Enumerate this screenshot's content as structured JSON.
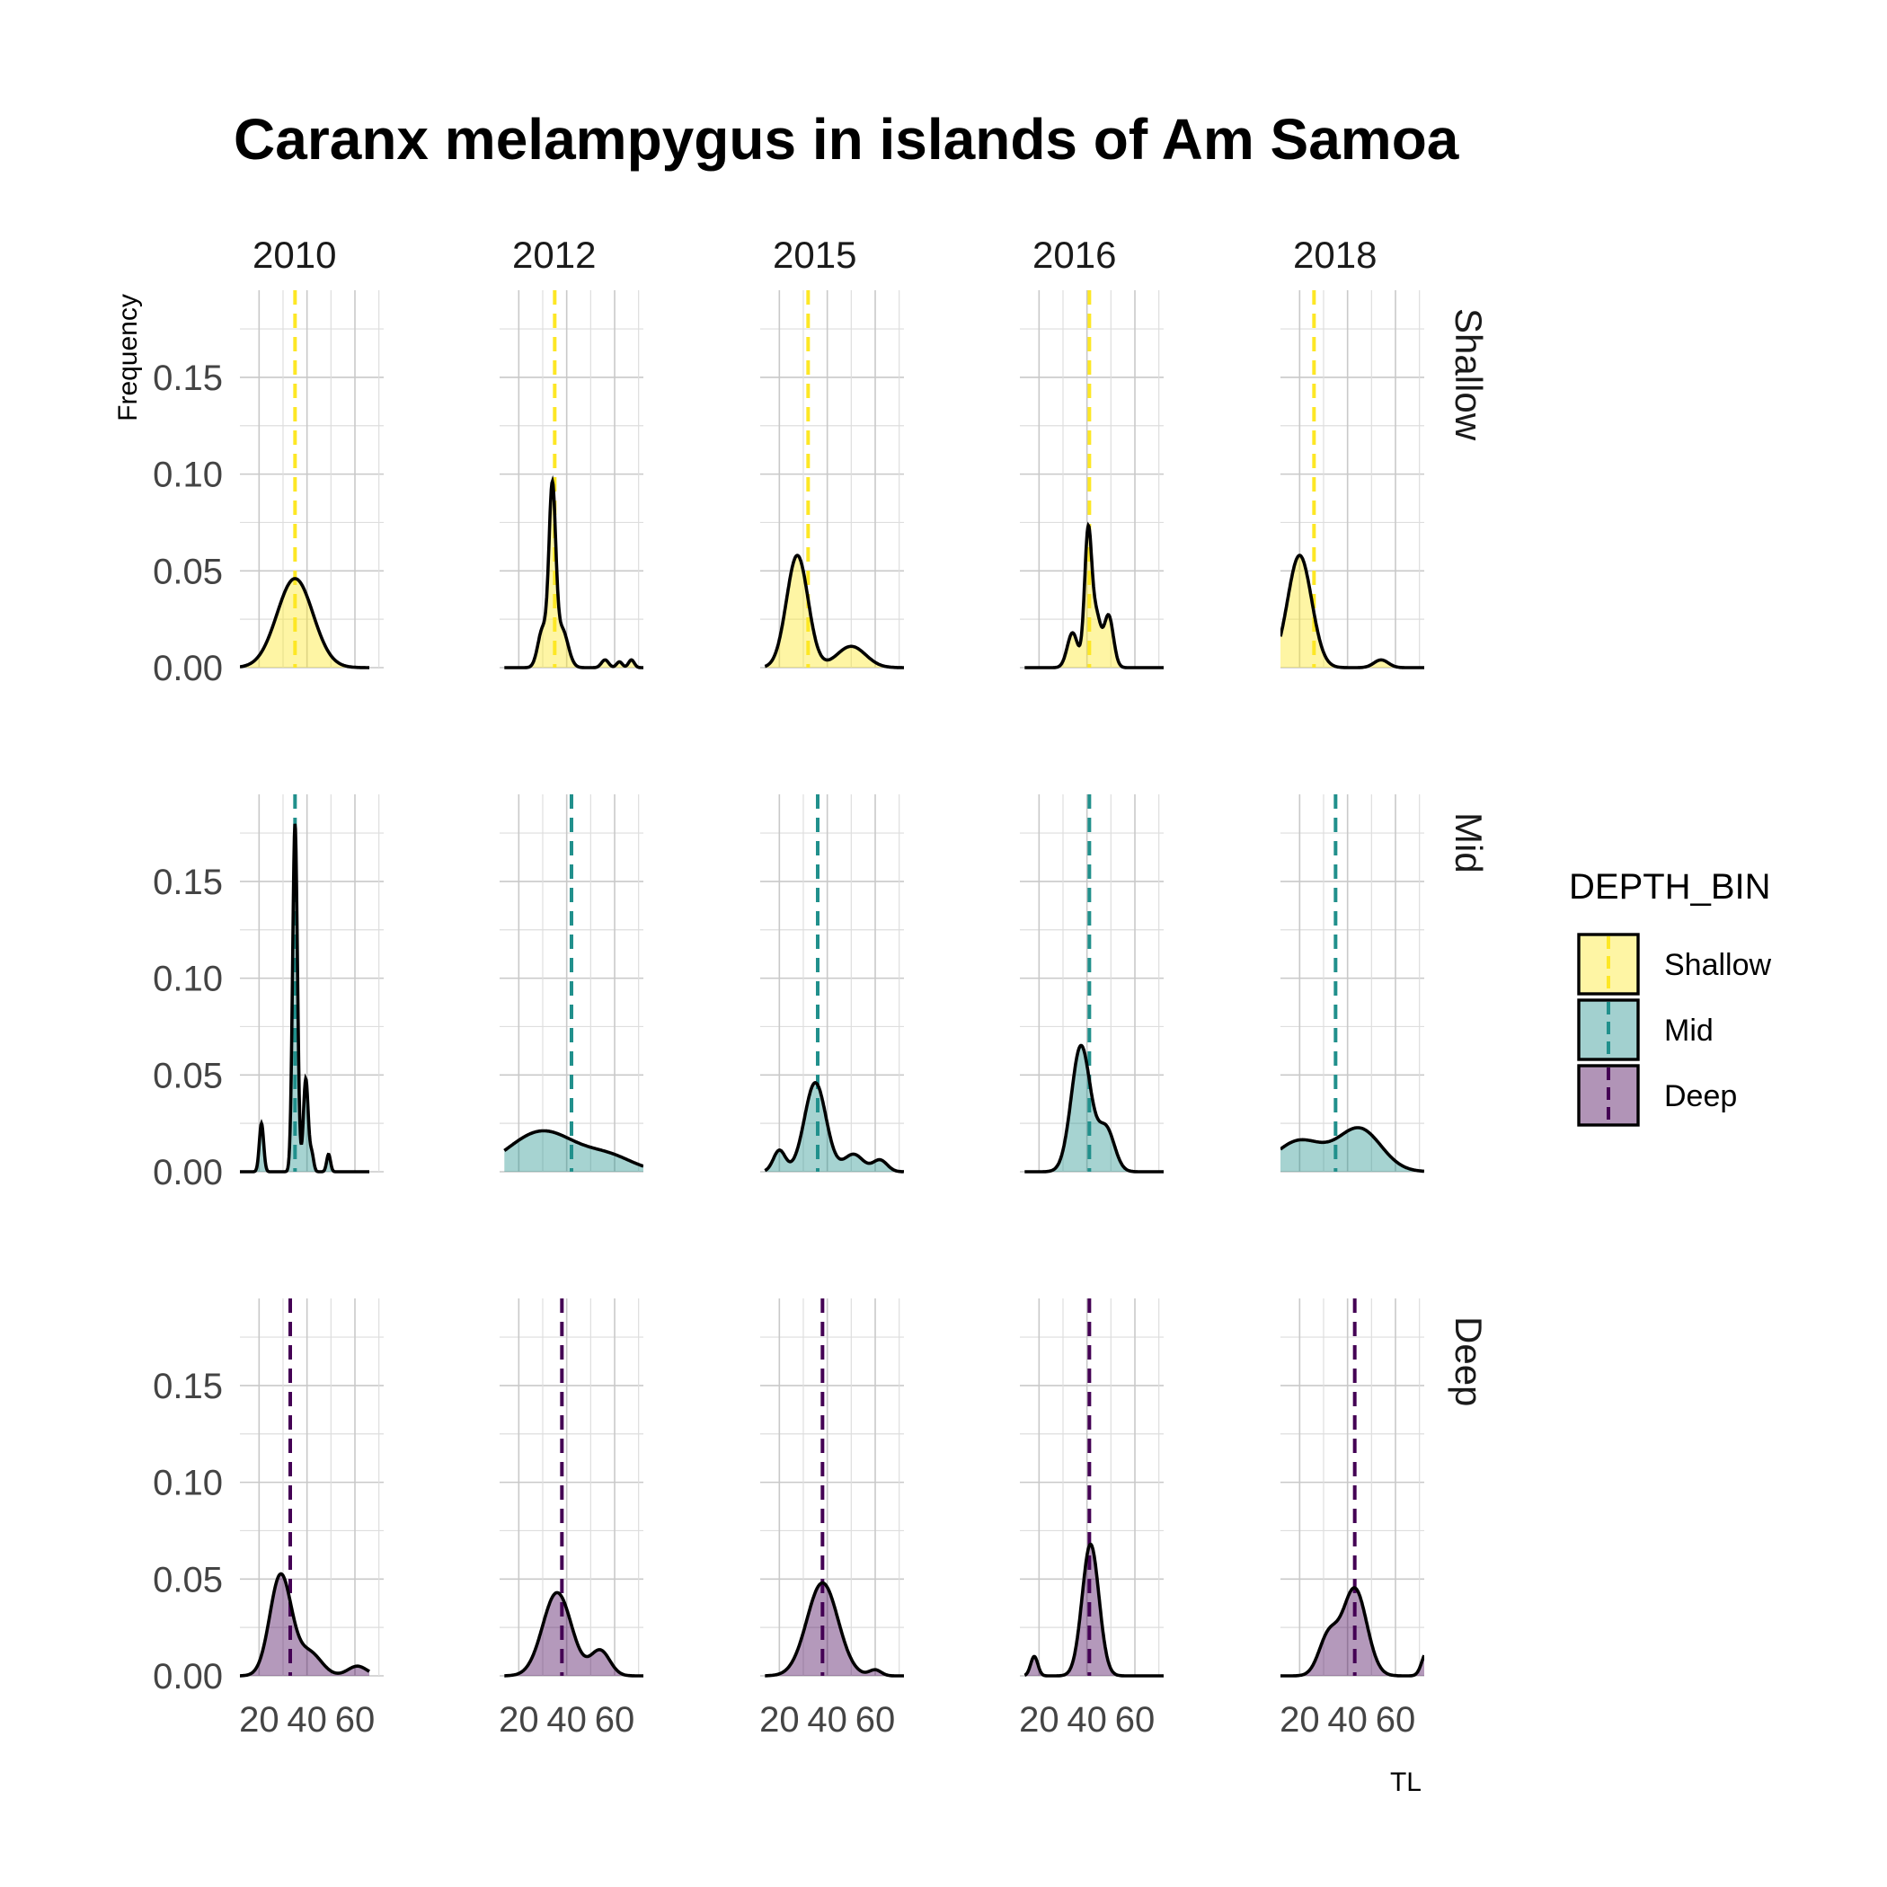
{
  "chart_data": {
    "type": "density",
    "title": "Caranx melampygus in islands of Am Samoa",
    "xlabel": "TL",
    "ylabel": "Frequency",
    "xlim": [
      12,
      72
    ],
    "ylim": [
      0,
      0.195
    ],
    "x_ticks": [
      20,
      40,
      60
    ],
    "y_ticks": [
      0.0,
      0.05,
      0.1,
      0.15
    ],
    "y_tick_labels": [
      "0.00",
      "0.05",
      "0.10",
      "0.15"
    ],
    "x_tick_labels": [
      "20",
      "40",
      "60"
    ],
    "columns": [
      "2010",
      "2012",
      "2015",
      "2016",
      "2018"
    ],
    "rows": [
      "Shallow",
      "Mid",
      "Deep"
    ],
    "grid": true,
    "legend": {
      "title": "DEPTH_BIN",
      "position": "right",
      "entries": [
        {
          "label": "Shallow",
          "fill": "#fde725",
          "line": "#fde725"
        },
        {
          "label": "Mid",
          "fill": "#21908c",
          "line": "#21908c"
        },
        {
          "label": "Deep",
          "fill": "#440154",
          "line": "#440154"
        }
      ]
    },
    "panels": [
      {
        "row": "Shallow",
        "column": "2010",
        "mean": 35,
        "range": [
          12,
          66
        ],
        "components": [
          [
            35,
            7.5,
            0.046
          ]
        ]
      },
      {
        "row": "Shallow",
        "column": "2012",
        "mean": 35,
        "range": [
          14,
          72
        ],
        "components": [
          [
            34,
            1.4,
            0.088
          ],
          [
            30,
            2,
            0.02
          ],
          [
            38,
            2.5,
            0.02
          ],
          [
            56,
            1.5,
            0.004
          ],
          [
            62,
            1.2,
            0.003
          ],
          [
            67,
            1.2,
            0.004
          ]
        ]
      },
      {
        "row": "Shallow",
        "column": "2015",
        "mean": 32,
        "range": [
          14,
          72
        ],
        "components": [
          [
            27.5,
            4.5,
            0.058
          ],
          [
            50,
            6,
            0.011
          ]
        ]
      },
      {
        "row": "Shallow",
        "column": "2016",
        "mean": 41,
        "range": [
          14,
          72
        ],
        "components": [
          [
            40.5,
            1.5,
            0.07
          ],
          [
            34,
            2.2,
            0.018
          ],
          [
            44,
            1.7,
            0.025
          ],
          [
            49,
            2,
            0.027
          ]
        ]
      },
      {
        "row": "Shallow",
        "column": "2018",
        "mean": 26,
        "range": [
          12,
          72
        ],
        "components": [
          [
            20,
            5,
            0.058
          ],
          [
            54,
            3,
            0.004
          ]
        ]
      },
      {
        "row": "Mid",
        "column": "2010",
        "mean": 35,
        "range": [
          12,
          66
        ],
        "components": [
          [
            35,
            1,
            0.18
          ],
          [
            39.5,
            1,
            0.048
          ],
          [
            21,
            0.9,
            0.025
          ],
          [
            42,
            0.8,
            0.009
          ],
          [
            49,
            0.8,
            0.009
          ]
        ]
      },
      {
        "row": "Mid",
        "column": "2012",
        "mean": 42,
        "range": [
          14,
          72
        ],
        "components": [
          [
            30,
            14,
            0.021
          ],
          [
            58,
            10,
            0.007
          ]
        ]
      },
      {
        "row": "Mid",
        "column": "2015",
        "mean": 36,
        "range": [
          14,
          72
        ],
        "components": [
          [
            35,
            4.5,
            0.046
          ],
          [
            20,
            2.5,
            0.011
          ],
          [
            51,
            4,
            0.009
          ],
          [
            62,
            3,
            0.006
          ]
        ]
      },
      {
        "row": "Mid",
        "column": "2016",
        "mean": 41,
        "range": [
          14,
          72
        ],
        "components": [
          [
            37.5,
            4,
            0.065
          ],
          [
            48,
            3.5,
            0.022
          ]
        ]
      },
      {
        "row": "Mid",
        "column": "2018",
        "mean": 35,
        "range": [
          12,
          72
        ],
        "components": [
          [
            20,
            10,
            0.016
          ],
          [
            45,
            9,
            0.022
          ]
        ]
      },
      {
        "row": "Deep",
        "column": "2010",
        "mean": 33,
        "range": [
          12,
          66
        ],
        "components": [
          [
            29,
            4.5,
            0.052
          ],
          [
            41,
            5,
            0.012
          ],
          [
            61,
            4,
            0.005
          ]
        ]
      },
      {
        "row": "Deep",
        "column": "2012",
        "mean": 38,
        "range": [
          14,
          72
        ],
        "components": [
          [
            36,
            6,
            0.043
          ],
          [
            54,
            4,
            0.013
          ]
        ]
      },
      {
        "row": "Deep",
        "column": "2015",
        "mean": 38,
        "range": [
          14,
          72
        ],
        "components": [
          [
            38,
            6.5,
            0.048
          ],
          [
            60,
            2.5,
            0.003
          ]
        ]
      },
      {
        "row": "Deep",
        "column": "2016",
        "mean": 41,
        "range": [
          14,
          72
        ],
        "components": [
          [
            41.5,
            3.5,
            0.068
          ],
          [
            18,
            1.5,
            0.01
          ]
        ]
      },
      {
        "row": "Deep",
        "column": "2018",
        "mean": 43,
        "range": [
          12,
          72
        ],
        "components": [
          [
            43,
            5,
            0.045
          ],
          [
            32,
            4,
            0.02
          ],
          [
            73,
            2,
            0.012
          ]
        ]
      }
    ]
  }
}
